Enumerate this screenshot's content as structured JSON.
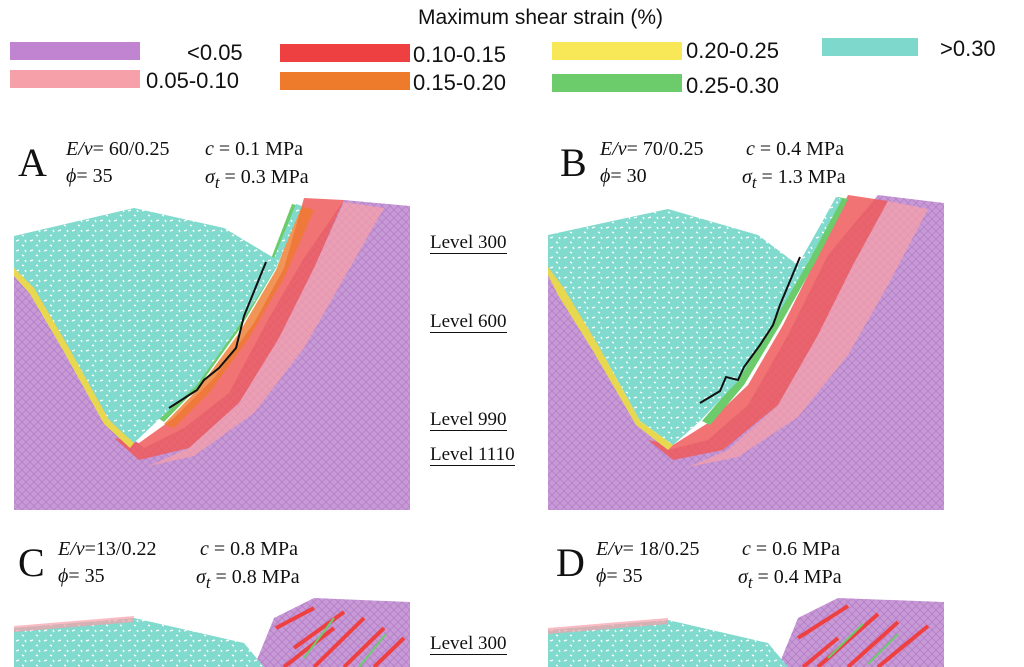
{
  "legend": {
    "title": "Maximum shear strain (%)",
    "items": [
      {
        "label": "<0.05",
        "color": "#c084d0"
      },
      {
        "label": "0.05-0.10",
        "color": "#f6a0aa"
      },
      {
        "label": "0.10-0.15",
        "color": "#ee4040"
      },
      {
        "label": "0.15-0.20",
        "color": "#ee7a2c"
      },
      {
        "label": "0.20-0.25",
        "color": "#f8e858"
      },
      {
        "label": "0.25-0.30",
        "color": "#6ccc6c"
      },
      {
        "label": ">0.30",
        "color": "#7ed8cc"
      }
    ]
  },
  "panels": [
    {
      "letter": "A",
      "ev_label": "E/ν",
      "ev": "= 60/0.25",
      "c_label": "c",
      "c": "= 0.1 MPa",
      "phi_label": "ϕ",
      "phi": "= 35",
      "sigma_label": "σ",
      "sigma_sub": "t",
      "sigma": "= 0.3 MPa"
    },
    {
      "letter": "B",
      "ev_label": "E/ν",
      "ev": "= 70/0.25",
      "c_label": "c",
      "c": "= 0.4 MPa",
      "phi_label": "ϕ",
      "phi": "= 30",
      "sigma_label": "σ",
      "sigma_sub": "t",
      "sigma": "= 1.3 MPa"
    },
    {
      "letter": "C",
      "ev_label": "E/ν",
      "ev": "=13/0.22",
      "c_label": "c",
      "c": "= 0.8 MPa",
      "phi_label": "ϕ",
      "phi": "= 35",
      "sigma_label": "σ",
      "sigma_sub": "t",
      "sigma": "= 0.8 MPa"
    },
    {
      "letter": "D",
      "ev_label": "E/ν",
      "ev": "= 18/0.25",
      "c_label": "c",
      "c": "= 0.6 MPa",
      "phi_label": "ϕ",
      "phi": "= 35",
      "sigma_label": "σ",
      "sigma_sub": "t",
      "sigma": "= 0.4 MPa"
    }
  ],
  "levels_top": [
    "Level 300",
    "Level 600",
    "Level 990",
    "Level 1110"
  ],
  "levels_bottom": [
    "Level 300"
  ]
}
